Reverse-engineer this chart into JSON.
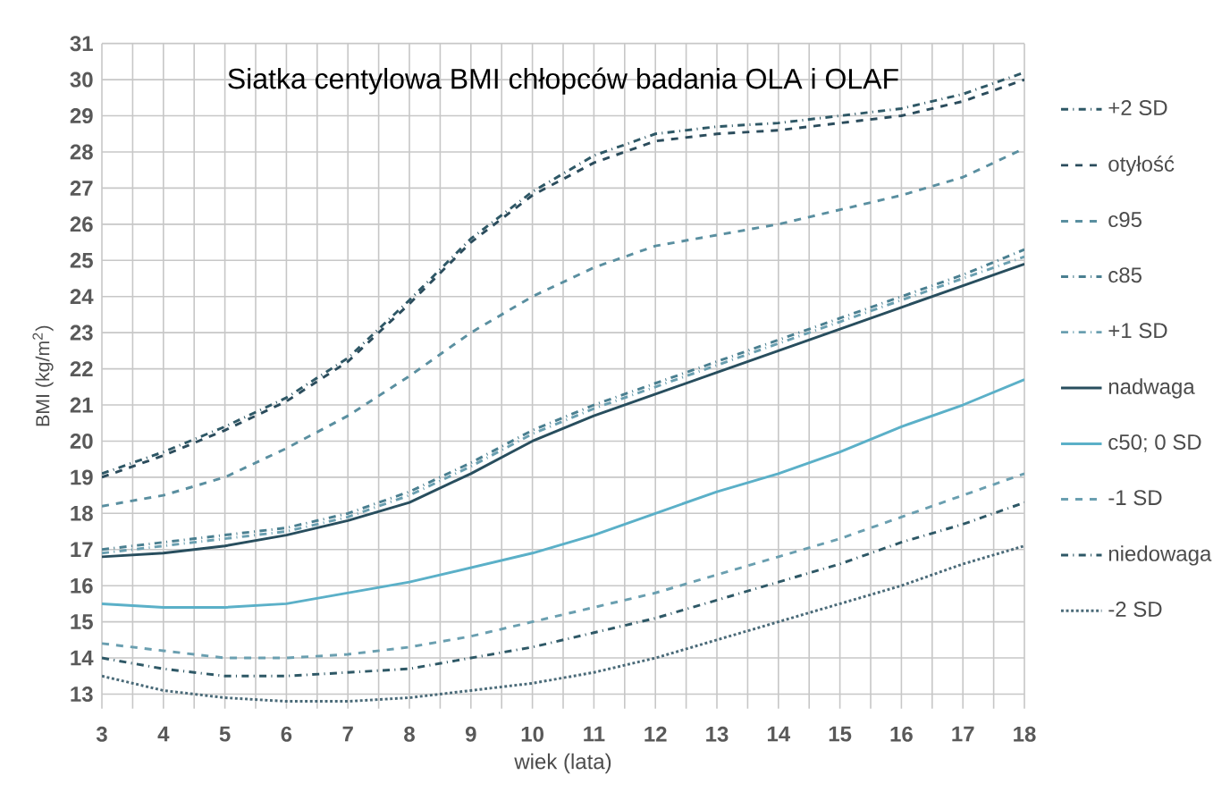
{
  "chart_data": {
    "type": "line",
    "title": "Siatka centylowa BMI chłopców badania OLA i OLAF",
    "xlabel": "wiek (lata)",
    "ylabel": "BMI (kg/m$^{2}$)",
    "x": [
      3,
      4,
      5,
      6,
      7,
      8,
      9,
      10,
      11,
      12,
      13,
      14,
      15,
      16,
      17,
      18
    ],
    "series": [
      {
        "name": "+2 SD",
        "color": "#2e5866",
        "line_style": "dashdot",
        "values": [
          19.1,
          19.7,
          20.4,
          21.2,
          22.3,
          23.9,
          25.6,
          26.9,
          27.9,
          28.5,
          28.7,
          28.8,
          29.0,
          29.2,
          29.6,
          30.2
        ]
      },
      {
        "name": "otyłość",
        "color": "#2b4c5c",
        "line_style": "dashed",
        "values": [
          19.0,
          19.6,
          20.3,
          21.1,
          22.2,
          23.8,
          25.5,
          26.8,
          27.7,
          28.3,
          28.5,
          28.6,
          28.8,
          29.0,
          29.4,
          30.0
        ]
      },
      {
        "name": "c95",
        "color": "#5a8fa0",
        "line_style": "dashed",
        "values": [
          18.2,
          18.5,
          19.0,
          19.8,
          20.7,
          21.8,
          23.0,
          24.0,
          24.8,
          25.4,
          25.7,
          26.0,
          26.4,
          26.8,
          27.3,
          28.1
        ]
      },
      {
        "name": "c85",
        "color": "#4a7f90",
        "line_style": "dashdot",
        "values": [
          17.0,
          17.2,
          17.4,
          17.6,
          18.0,
          18.6,
          19.4,
          20.3,
          21.0,
          21.6,
          22.2,
          22.8,
          23.4,
          24.0,
          24.6,
          25.3
        ]
      },
      {
        "name": "+1 SD",
        "color": "#6a9fb0",
        "line_style": "dashdot",
        "values": [
          16.9,
          17.1,
          17.3,
          17.5,
          17.9,
          18.5,
          19.3,
          20.2,
          20.9,
          21.5,
          22.1,
          22.7,
          23.3,
          23.9,
          24.5,
          25.1
        ]
      },
      {
        "name": "nadwaga",
        "color": "#284e5e",
        "line_style": "solid",
        "values": [
          16.8,
          16.9,
          17.1,
          17.4,
          17.8,
          18.3,
          19.1,
          20.0,
          20.7,
          21.3,
          21.9,
          22.5,
          23.1,
          23.7,
          24.3,
          24.9
        ]
      },
      {
        "name": "c50; 0 SD",
        "color": "#5bb0c8",
        "line_style": "solid",
        "values": [
          15.5,
          15.4,
          15.4,
          15.5,
          15.8,
          16.1,
          16.5,
          16.9,
          17.4,
          18.0,
          18.6,
          19.1,
          19.7,
          20.4,
          21.0,
          21.7
        ]
      },
      {
        "name": "-1 SD",
        "color": "#6a9fb0",
        "line_style": "dashed",
        "values": [
          14.4,
          14.2,
          14.0,
          14.0,
          14.1,
          14.3,
          14.6,
          15.0,
          15.4,
          15.8,
          16.3,
          16.8,
          17.3,
          17.9,
          18.5,
          19.1
        ]
      },
      {
        "name": "niedowaga",
        "color": "#2e5866",
        "line_style": "dashdot",
        "values": [
          14.0,
          13.7,
          13.5,
          13.5,
          13.6,
          13.7,
          14.0,
          14.3,
          14.7,
          15.1,
          15.6,
          16.1,
          16.6,
          17.2,
          17.7,
          18.3
        ]
      },
      {
        "name": "-2 SD",
        "color": "#4a6a78",
        "line_style": "dotted",
        "values": [
          13.5,
          13.1,
          12.9,
          12.8,
          12.8,
          12.9,
          13.1,
          13.3,
          13.6,
          14.0,
          14.5,
          15.0,
          15.5,
          16.0,
          16.6,
          17.1
        ]
      }
    ],
    "xlim": [
      3,
      18
    ],
    "ylim": [
      12.6,
      31
    ],
    "xticks": [
      3,
      4,
      5,
      6,
      7,
      8,
      9,
      10,
      11,
      12,
      13,
      14,
      15,
      16,
      17,
      18
    ],
    "yticks": [
      13,
      14,
      15,
      16,
      17,
      18,
      19,
      20,
      21,
      22,
      23,
      24,
      25,
      26,
      27,
      28,
      29,
      30,
      31
    ],
    "grid": true,
    "legend": "right",
    "marker": "none"
  }
}
